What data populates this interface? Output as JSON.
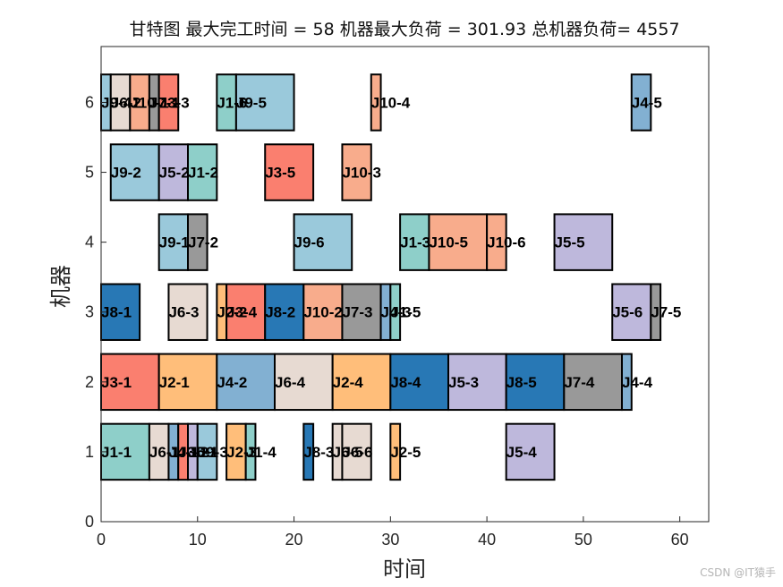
{
  "chart_data": {
    "type": "gantt",
    "title": "甘特图 最大完工时间 = 58 机器最大负荷 = 301.93 总机器负荷= 4557",
    "xlabel": "时间",
    "ylabel": "机器",
    "xlim": [
      0,
      63
    ],
    "ylim": [
      0,
      6.8
    ],
    "xticks": [
      "0",
      "10",
      "20",
      "30",
      "40",
      "50",
      "60"
    ],
    "yticks": [
      "0",
      "1",
      "2",
      "3",
      "4",
      "5",
      "6"
    ],
    "colors": {
      "J1": "#8ecfc9",
      "J2": "#ffbe7a",
      "J3": "#fa7f6f",
      "J4": "#82b0d2",
      "J5": "#beb8dc",
      "J6": "#e7dad2",
      "J7": "#999999",
      "J8": "#2878b5",
      "J9": "#9ac9db",
      "J10": "#f8ac8c"
    },
    "tasks": [
      {
        "machine": 1,
        "start": 0,
        "end": 5,
        "job": "J1",
        "label": "J1-1"
      },
      {
        "machine": 1,
        "start": 5,
        "end": 7,
        "job": "J6",
        "label": "J6-1"
      },
      {
        "machine": 1,
        "start": 7,
        "end": 8,
        "job": "J4",
        "label": "J4-1"
      },
      {
        "machine": 1,
        "start": 8,
        "end": 9,
        "job": "J3",
        "label": "J3-2"
      },
      {
        "machine": 1,
        "start": 9,
        "end": 10,
        "job": "J5",
        "label": "J5-1"
      },
      {
        "machine": 1,
        "start": 10,
        "end": 12,
        "job": "J9",
        "label": "J9-3"
      },
      {
        "machine": 1,
        "start": 13,
        "end": 15,
        "job": "J2",
        "label": "J2-3"
      },
      {
        "machine": 1,
        "start": 15,
        "end": 16,
        "job": "J1",
        "label": "J1-4"
      },
      {
        "machine": 1,
        "start": 21,
        "end": 22,
        "job": "J8",
        "label": "J8-3"
      },
      {
        "machine": 1,
        "start": 24,
        "end": 25,
        "job": "J6",
        "label": "J6-5"
      },
      {
        "machine": 1,
        "start": 25,
        "end": 28,
        "job": "J6",
        "label": "J6-6"
      },
      {
        "machine": 1,
        "start": 30,
        "end": 31,
        "job": "J2",
        "label": "J2-5"
      },
      {
        "machine": 1,
        "start": 42,
        "end": 47,
        "job": "J5",
        "label": "J5-4"
      },
      {
        "machine": 2,
        "start": 0,
        "end": 6,
        "job": "J3",
        "label": "J3-1"
      },
      {
        "machine": 2,
        "start": 6,
        "end": 12,
        "job": "J2",
        "label": "J2-1"
      },
      {
        "machine": 2,
        "start": 12,
        "end": 18,
        "job": "J4",
        "label": "J4-2"
      },
      {
        "machine": 2,
        "start": 18,
        "end": 24,
        "job": "J6",
        "label": "J6-4"
      },
      {
        "machine": 2,
        "start": 24,
        "end": 30,
        "job": "J2",
        "label": "J2-4"
      },
      {
        "machine": 2,
        "start": 30,
        "end": 36,
        "job": "J8",
        "label": "J8-4"
      },
      {
        "machine": 2,
        "start": 36,
        "end": 42,
        "job": "J5",
        "label": "J5-3"
      },
      {
        "machine": 2,
        "start": 42,
        "end": 48,
        "job": "J8",
        "label": "J8-5"
      },
      {
        "machine": 2,
        "start": 48,
        "end": 54,
        "job": "J7",
        "label": "J7-4"
      },
      {
        "machine": 2,
        "start": 54,
        "end": 55,
        "job": "J4",
        "label": "J4-4"
      },
      {
        "machine": 3,
        "start": 0,
        "end": 4,
        "job": "J8",
        "label": "J8-1"
      },
      {
        "machine": 3,
        "start": 7,
        "end": 11,
        "job": "J6",
        "label": "J6-3"
      },
      {
        "machine": 3,
        "start": 12,
        "end": 13,
        "job": "J2",
        "label": "J2-2"
      },
      {
        "machine": 3,
        "start": 13,
        "end": 17,
        "job": "J3",
        "label": "J3-4"
      },
      {
        "machine": 3,
        "start": 17,
        "end": 21,
        "job": "J8",
        "label": "J8-2"
      },
      {
        "machine": 3,
        "start": 21,
        "end": 25,
        "job": "J10",
        "label": "J10-2"
      },
      {
        "machine": 3,
        "start": 25,
        "end": 29,
        "job": "J7",
        "label": "J7-3"
      },
      {
        "machine": 3,
        "start": 29,
        "end": 30,
        "job": "J4",
        "label": "J4-3"
      },
      {
        "machine": 3,
        "start": 30,
        "end": 31,
        "job": "J1",
        "label": "J1-5"
      },
      {
        "machine": 3,
        "start": 53,
        "end": 57,
        "job": "J5",
        "label": "J5-6"
      },
      {
        "machine": 3,
        "start": 57,
        "end": 58,
        "job": "J7",
        "label": "J7-5"
      },
      {
        "machine": 4,
        "start": 6,
        "end": 9,
        "job": "J9",
        "label": "J9-1"
      },
      {
        "machine": 4,
        "start": 9,
        "end": 11,
        "job": "J7",
        "label": "J7-2"
      },
      {
        "machine": 4,
        "start": 20,
        "end": 26,
        "job": "J9",
        "label": "J9-6"
      },
      {
        "machine": 4,
        "start": 31,
        "end": 34,
        "job": "J1",
        "label": "J1-3"
      },
      {
        "machine": 4,
        "start": 34,
        "end": 40,
        "job": "J10",
        "label": "J10-5"
      },
      {
        "machine": 4,
        "start": 40,
        "end": 42,
        "job": "J10",
        "label": "J10-6"
      },
      {
        "machine": 4,
        "start": 47,
        "end": 53,
        "job": "J5",
        "label": "J5-5"
      },
      {
        "machine": 5,
        "start": 1,
        "end": 6,
        "job": "J9",
        "label": "J9-2"
      },
      {
        "machine": 5,
        "start": 6,
        "end": 9,
        "job": "J5",
        "label": "J5-2"
      },
      {
        "machine": 5,
        "start": 9,
        "end": 12,
        "job": "J1",
        "label": "J1-2"
      },
      {
        "machine": 5,
        "start": 17,
        "end": 22,
        "job": "J3",
        "label": "J3-5"
      },
      {
        "machine": 5,
        "start": 25,
        "end": 28,
        "job": "J10",
        "label": "J10-3"
      },
      {
        "machine": 6,
        "start": 0,
        "end": 1,
        "job": "J9",
        "label": "J9-4"
      },
      {
        "machine": 6,
        "start": 1,
        "end": 3,
        "job": "J6",
        "label": "J6-2"
      },
      {
        "machine": 6,
        "start": 3,
        "end": 5,
        "job": "J10",
        "label": "J10-1"
      },
      {
        "machine": 6,
        "start": 5,
        "end": 6,
        "job": "J7",
        "label": "J7-1"
      },
      {
        "machine": 6,
        "start": 6,
        "end": 8,
        "job": "J3",
        "label": "J3-3"
      },
      {
        "machine": 6,
        "start": 12,
        "end": 14,
        "job": "J1",
        "label": "J1-6"
      },
      {
        "machine": 6,
        "start": 14,
        "end": 20,
        "job": "J9",
        "label": "J9-5"
      },
      {
        "machine": 6,
        "start": 28,
        "end": 29,
        "job": "J10",
        "label": "J10-4"
      },
      {
        "machine": 6,
        "start": 55,
        "end": 57,
        "job": "J4",
        "label": "J4-5"
      }
    ]
  },
  "watermark": "CSDN @IT猿手"
}
